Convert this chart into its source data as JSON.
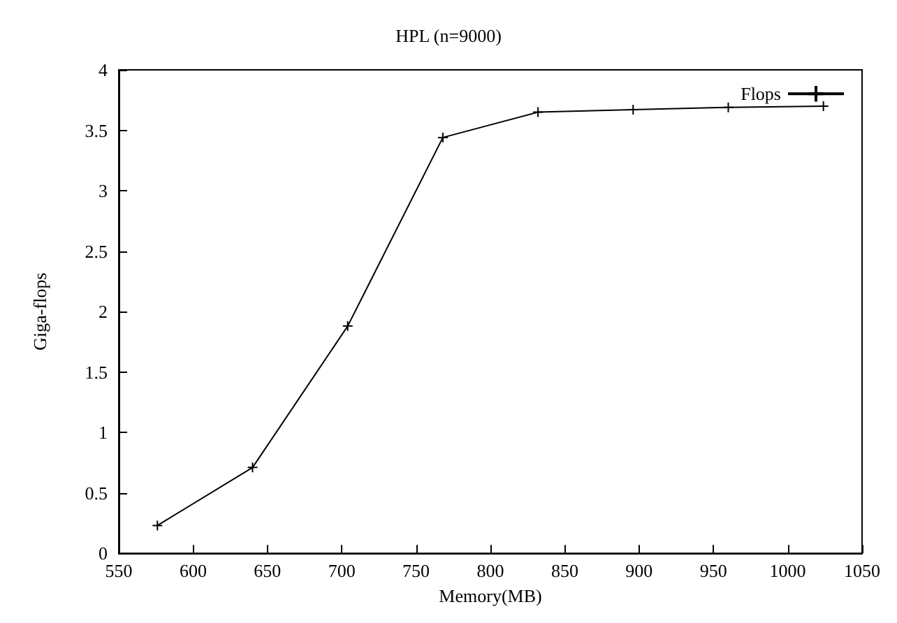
{
  "chart_data": {
    "type": "line",
    "title": "HPL (n=9000)",
    "xlabel": "Memory(MB)",
    "ylabel": "Giga-flops",
    "x": [
      576,
      640,
      704,
      768,
      832,
      896,
      960,
      1024
    ],
    "series": [
      {
        "name": "Flops",
        "color": "#000000",
        "values": [
          0.23,
          0.71,
          1.88,
          3.44,
          3.65,
          3.67,
          3.69,
          3.7
        ]
      }
    ],
    "xlim": [
      550,
      1050
    ],
    "xticks": [
      550,
      600,
      650,
      700,
      750,
      800,
      850,
      900,
      950,
      1000,
      1050
    ],
    "ylim": [
      0,
      4
    ],
    "yticks": [
      0,
      0.5,
      1,
      1.5,
      2,
      2.5,
      3,
      3.5,
      4
    ],
    "grid": false,
    "legend": "top right",
    "marker": "cross",
    "line_style": "solid"
  }
}
